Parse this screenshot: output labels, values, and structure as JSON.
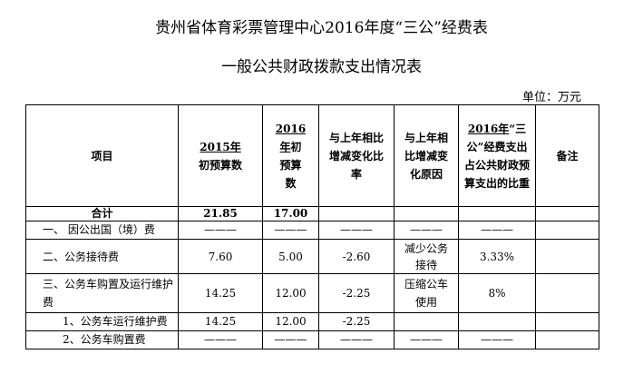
{
  "title_line1": "贵州省体育彩票管理中心2016年度“三公”经费表",
  "title_line2": "一般公共财政拨款支出情况表",
  "unit": "单位：万元",
  "headers": {
    "item": "项目",
    "budget2015_year": "2015年",
    "budget2015_rest": "初预算数",
    "budget2016_year": "2016年",
    "budget2016_rest": "初预算数",
    "change": "与上年相比增减变化比率",
    "reason": "与上年相比增减变化原因",
    "share_year": "2016年",
    "share_rest": "“三公”经费支出占公共财政预算支出的比重",
    "note": "备注"
  },
  "rows": [
    {
      "item": "合计",
      "b2015": "21.85",
      "b2016": "17.00",
      "change": "",
      "reason": "",
      "share": "",
      "note": ""
    },
    {
      "item": "一、  因公出国（境）费",
      "b2015": "———",
      "b2016": "———",
      "change": "———",
      "reason": "———",
      "share": "———",
      "note": ""
    },
    {
      "item": "二、公务接待费",
      "b2015": "7.60",
      "b2016": "5.00",
      "change": "-2.60",
      "reason": "减少公务接待",
      "share": "3.33%",
      "note": ""
    },
    {
      "item": "三、公务车购置及运行维护费",
      "b2015": "14.25",
      "b2016": "12.00",
      "change": "-2.25",
      "reason": "压缩公车使用",
      "share": "8%",
      "note": ""
    },
    {
      "item": "1、公务车运行维护费",
      "b2015": "14.25",
      "b2016": "12.00",
      "change": "-2.25",
      "reason": "",
      "share": "",
      "note": ""
    },
    {
      "item": "2、公务车购置费",
      "b2015": "———",
      "b2016": "———",
      "change": "———",
      "reason": "———",
      "share": "———",
      "note": ""
    }
  ]
}
